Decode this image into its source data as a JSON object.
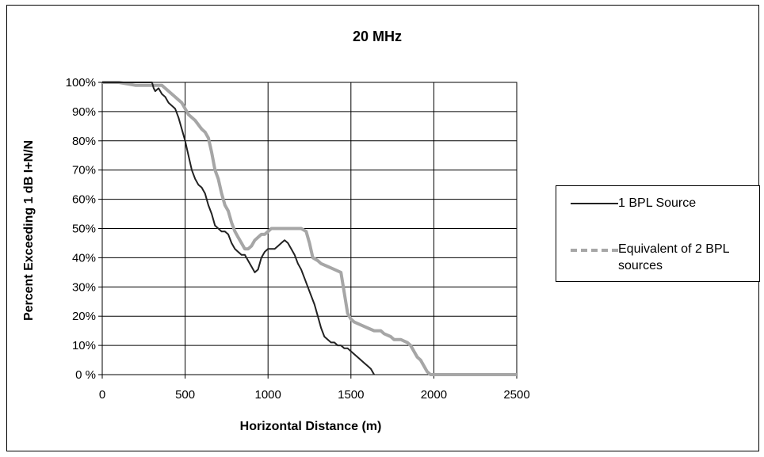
{
  "chart_data": {
    "type": "line",
    "title": "20 MHz",
    "xlabel": "Horizontal Distance (m)",
    "ylabel": "Percent Exceeding 1 dB I+N/N",
    "xlim": [
      0,
      2500
    ],
    "ylim": [
      0,
      100
    ],
    "x_ticks": [
      "0",
      "500",
      "1000",
      "1500",
      "2000",
      "2500"
    ],
    "y_ticks": [
      "0 %",
      "10%",
      "20%",
      "30%",
      "40%",
      "50%",
      "60%",
      "70%",
      "80%",
      "90%",
      "100%"
    ],
    "grid": true,
    "legend_position": "right",
    "series": [
      {
        "name": "1 BPL Source",
        "color": "#222222",
        "style": "solid",
        "points": [
          [
            0,
            100
          ],
          [
            300,
            100
          ],
          [
            310,
            98
          ],
          [
            320,
            97
          ],
          [
            340,
            98
          ],
          [
            360,
            96
          ],
          [
            380,
            95
          ],
          [
            400,
            93
          ],
          [
            420,
            92
          ],
          [
            440,
            91
          ],
          [
            460,
            88
          ],
          [
            480,
            84
          ],
          [
            500,
            80
          ],
          [
            520,
            75
          ],
          [
            540,
            70
          ],
          [
            560,
            67
          ],
          [
            580,
            65
          ],
          [
            600,
            64
          ],
          [
            620,
            62
          ],
          [
            640,
            58
          ],
          [
            660,
            55
          ],
          [
            680,
            51
          ],
          [
            700,
            50
          ],
          [
            720,
            49
          ],
          [
            740,
            49
          ],
          [
            760,
            48
          ],
          [
            780,
            45
          ],
          [
            800,
            43
          ],
          [
            820,
            42
          ],
          [
            840,
            41
          ],
          [
            860,
            41
          ],
          [
            880,
            39
          ],
          [
            900,
            37
          ],
          [
            920,
            35
          ],
          [
            940,
            36
          ],
          [
            960,
            40
          ],
          [
            980,
            42
          ],
          [
            1000,
            43
          ],
          [
            1020,
            43
          ],
          [
            1040,
            43
          ],
          [
            1060,
            44
          ],
          [
            1080,
            45
          ],
          [
            1100,
            46
          ],
          [
            1120,
            45
          ],
          [
            1140,
            43
          ],
          [
            1160,
            41
          ],
          [
            1180,
            38
          ],
          [
            1200,
            36
          ],
          [
            1220,
            33
          ],
          [
            1240,
            30
          ],
          [
            1260,
            27
          ],
          [
            1280,
            24
          ],
          [
            1300,
            20
          ],
          [
            1320,
            16
          ],
          [
            1340,
            13
          ],
          [
            1360,
            12
          ],
          [
            1380,
            11
          ],
          [
            1400,
            11
          ],
          [
            1420,
            10
          ],
          [
            1440,
            10
          ],
          [
            1460,
            9
          ],
          [
            1480,
            9
          ],
          [
            1500,
            8
          ],
          [
            1520,
            7
          ],
          [
            1540,
            6
          ],
          [
            1560,
            5
          ],
          [
            1580,
            4
          ],
          [
            1600,
            3
          ],
          [
            1620,
            2
          ],
          [
            1640,
            0
          ]
        ]
      },
      {
        "name": "Equivalent of 2 BPL sources",
        "color": "#a6a6a6",
        "style": "dashed",
        "points": [
          [
            0,
            100
          ],
          [
            100,
            100
          ],
          [
            200,
            99
          ],
          [
            300,
            99
          ],
          [
            360,
            99
          ],
          [
            400,
            97
          ],
          [
            440,
            95
          ],
          [
            480,
            93
          ],
          [
            520,
            89
          ],
          [
            560,
            87
          ],
          [
            600,
            84
          ],
          [
            620,
            83
          ],
          [
            640,
            81
          ],
          [
            660,
            76
          ],
          [
            680,
            70
          ],
          [
            700,
            67
          ],
          [
            720,
            62
          ],
          [
            740,
            58
          ],
          [
            760,
            56
          ],
          [
            780,
            52
          ],
          [
            800,
            49
          ],
          [
            820,
            47
          ],
          [
            840,
            45
          ],
          [
            860,
            43
          ],
          [
            880,
            43
          ],
          [
            900,
            44
          ],
          [
            920,
            46
          ],
          [
            940,
            47
          ],
          [
            960,
            48
          ],
          [
            980,
            48
          ],
          [
            1000,
            49
          ],
          [
            1020,
            50
          ],
          [
            1100,
            50
          ],
          [
            1200,
            50
          ],
          [
            1230,
            49
          ],
          [
            1250,
            45
          ],
          [
            1270,
            40
          ],
          [
            1300,
            39
          ],
          [
            1320,
            38
          ],
          [
            1360,
            37
          ],
          [
            1400,
            36
          ],
          [
            1440,
            35
          ],
          [
            1460,
            28
          ],
          [
            1480,
            21
          ],
          [
            1500,
            19
          ],
          [
            1520,
            18
          ],
          [
            1560,
            17
          ],
          [
            1600,
            16
          ],
          [
            1640,
            15
          ],
          [
            1680,
            15
          ],
          [
            1700,
            14
          ],
          [
            1740,
            13
          ],
          [
            1760,
            12
          ],
          [
            1800,
            12
          ],
          [
            1840,
            11
          ],
          [
            1860,
            10
          ],
          [
            1880,
            8
          ],
          [
            1900,
            6
          ],
          [
            1920,
            5
          ],
          [
            1940,
            3
          ],
          [
            1960,
            1
          ],
          [
            1980,
            0
          ],
          [
            2500,
            0
          ]
        ]
      }
    ]
  }
}
